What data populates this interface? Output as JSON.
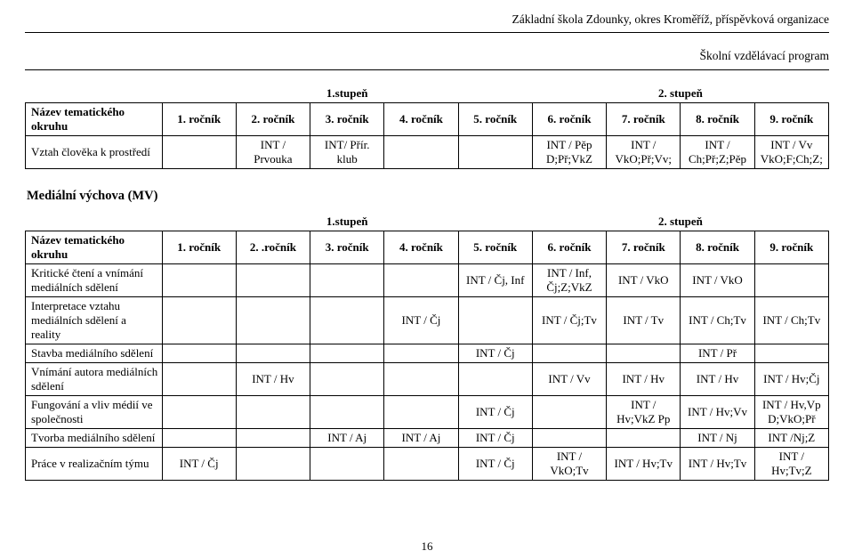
{
  "header": {
    "line1": "Základní škola Zdounky, okres Kroměříž, příspěvková organizace",
    "line2": "Školní vzdělávací program"
  },
  "levels": {
    "left": "1.stupeň",
    "right": "2. stupeň"
  },
  "grades": {
    "name_label": "Název tematického okruhu",
    "g1": "1. ročník",
    "g2": "2. ročník",
    "g3": "3. ročník",
    "g4": "4. ročník",
    "g5": "5. ročník",
    "g6": "6. ročník",
    "g7": "7. ročník",
    "g8": "8. ročník",
    "g9": "9. ročník"
  },
  "grades2": {
    "g1": "1. ročník",
    "g2": "2. .ročník",
    "g3": "3. ročník",
    "g4": "4. ročník",
    "g5": "5. ročník",
    "g6": "6. ročník",
    "g7": "7. ročník",
    "g8": "8. ročník",
    "g9": "9. ročník"
  },
  "table1": {
    "row1": {
      "name": "Vztah člověka k prostředí",
      "c2": "INT / Prvouka",
      "c3": "INT/ Přír. klub",
      "c6": "INT / Pěp D;Př;VkZ",
      "c7": "INT / VkO;Př;Vv;",
      "c8": "INT / Ch;Př;Z;Pěp",
      "c9": "INT / Vv VkO;F;Ch;Z;"
    }
  },
  "section2_title": "Mediální výchova (MV)",
  "table2": {
    "row1": {
      "name": "Kritické čtení a vnímání mediálních sdělení",
      "c5": "INT / Čj, Inf",
      "c6": "INT / Inf, Čj;Z;VkZ",
      "c7": "INT / VkO",
      "c8": "INT / VkO"
    },
    "row2": {
      "name": "Interpretace vztahu mediálních sdělení a reality",
      "c4": "INT / Čj",
      "c6": "INT / Čj;Tv",
      "c7": "INT / Tv",
      "c8": "INT / Ch;Tv",
      "c9": "INT / Ch;Tv"
    },
    "row3": {
      "name": "Stavba mediálního sdělení",
      "c5": "INT / Čj",
      "c8": "INT / Př"
    },
    "row4": {
      "name": "Vnímání autora mediálních sdělení",
      "c2": "INT / Hv",
      "c6": "INT / Vv",
      "c7": "INT / Hv",
      "c8": "INT / Hv",
      "c9": "INT / Hv;Čj"
    },
    "row5": {
      "name": "Fungování a vliv médií ve společnosti",
      "c5": "INT / Čj",
      "c7": "INT / Hv;VkZ Pp",
      "c8": "INT / Hv;Vv",
      "c9": "INT / Hv,Vp D;VkO;Př"
    },
    "row6": {
      "name": "Tvorba mediálního sdělení",
      "c3": "INT / Aj",
      "c4": "INT / Aj",
      "c5": "INT / Čj",
      "c8": "INT / Nj",
      "c9": "INT /Nj;Z"
    },
    "row7": {
      "name": "Práce v realizačním týmu",
      "c1": "INT / Čj",
      "c5": "INT / Čj",
      "c6": "INT / VkO;Tv",
      "c7": "INT / Hv;Tv",
      "c8": "INT / Hv;Tv",
      "c9": "INT / Hv;Tv;Z"
    }
  },
  "page_number": "16"
}
